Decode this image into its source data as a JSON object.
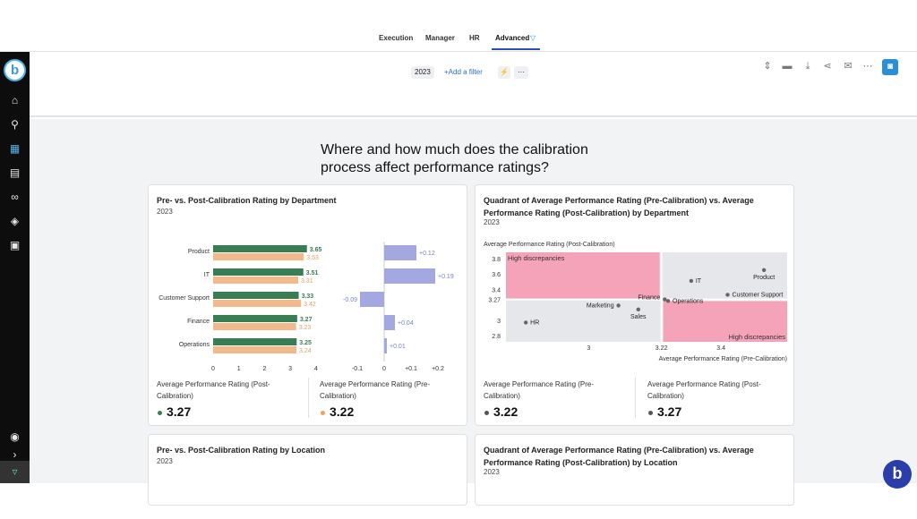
{
  "nav": {
    "tabs": [
      {
        "label": "Execution"
      },
      {
        "label": "Manager"
      },
      {
        "label": "HR"
      },
      {
        "label": "Advanced"
      }
    ]
  },
  "toolbar": {
    "year_chip": "2023",
    "add_filter": "+Add a filter",
    "bolt": "⚡",
    "more": "···"
  },
  "page": {
    "title": "Where and how much does the calibration process affect performance ratings?"
  },
  "cards": {
    "dept_bar": {
      "title": "Pre- vs. Post-Calibration Rating by Department",
      "year": "2023",
      "kpi1_label": "Average Performance Rating (Post-Calibration)",
      "kpi1_value": "3.27",
      "kpi2_label": "Average Performance Rating (Pre-Calibration)",
      "kpi2_value": "3.22"
    },
    "dept_quad": {
      "title": "Quadrant of Average Performance Rating (Pre-Calibration) vs. Average Performance Rating (Post-Calibration) by Department",
      "year": "2023",
      "kpi1_label": "Average Performance Rating (Pre-Calibration)",
      "kpi1_value": "3.22",
      "kpi2_label": "Average Performance Rating (Post-Calibration)",
      "kpi2_value": "3.27"
    },
    "loc_bar": {
      "title": "Pre- vs. Post-Calibration Rating by Location",
      "year": "2023"
    },
    "loc_quad": {
      "title": "Quadrant of Average Performance Rating (Pre-Calibration) vs. Average Performance Rating (Post-Calibration) by Location",
      "year": "2023"
    }
  },
  "colors": {
    "post": "#3a7d55",
    "pre": "#f2b98a",
    "diff": "#a3a8e0",
    "quad_highlight": "#f4a3b8",
    "quad_bg": "#e6e7ea"
  },
  "chart_data": [
    {
      "type": "bar",
      "title": "Pre- vs. Post-Calibration Rating by Department",
      "categories": [
        "Product",
        "IT",
        "Customer Support",
        "Finance",
        "Operations"
      ],
      "series": [
        {
          "name": "Post-Calibration",
          "values": [
            3.65,
            3.51,
            3.33,
            3.27,
            3.25
          ]
        },
        {
          "name": "Pre-Calibration",
          "values": [
            3.53,
            3.31,
            3.42,
            3.23,
            3.24
          ]
        }
      ],
      "xlim": [
        0,
        4
      ],
      "xticks": [
        "0",
        "1",
        "2",
        "3",
        "4"
      ]
    },
    {
      "type": "bar",
      "categories": [
        "Product",
        "IT",
        "Customer Support",
        "Finance",
        "Operations"
      ],
      "values": [
        0.12,
        0.19,
        -0.09,
        0.04,
        0.01
      ],
      "labels": [
        "+0.12",
        "+0.19",
        "-0.09",
        "+0.04",
        "+0.01"
      ],
      "xlim": [
        -0.1,
        0.2
      ],
      "xticks": [
        "-0.1",
        "0",
        "+0.1",
        "+0.2"
      ]
    },
    {
      "type": "scatter",
      "title": "Quadrant of Average Performance Rating (Pre-Calibration) vs. Average Performance Rating (Post-Calibration) by Department",
      "xlabel": "Average Performance Rating (Pre-Calibration)",
      "ylabel": "Average Performance Rating (Post-Calibration)",
      "xlim": [
        2.75,
        3.6
      ],
      "ylim": [
        2.72,
        3.88
      ],
      "xticks": [
        "3",
        "3.22",
        "3.4"
      ],
      "yticks": [
        "3.8",
        "3.6",
        "3.4",
        "3.27",
        "3",
        "2.8"
      ],
      "reference_x": 3.22,
      "reference_y": 3.27,
      "quadrant_labels": [
        "High discrepancies",
        "High discrepancies"
      ],
      "points": [
        {
          "label": "Product",
          "x": 3.53,
          "y": 3.65
        },
        {
          "label": "IT",
          "x": 3.31,
          "y": 3.51
        },
        {
          "label": "Customer Support",
          "x": 3.42,
          "y": 3.33
        },
        {
          "label": "Finance",
          "x": 3.23,
          "y": 3.27
        },
        {
          "label": "Operations",
          "x": 3.24,
          "y": 3.25
        },
        {
          "label": "Marketing",
          "x": 3.09,
          "y": 3.19
        },
        {
          "label": "Sales",
          "x": 3.15,
          "y": 3.14
        },
        {
          "label": "HR",
          "x": 2.81,
          "y": 2.97
        }
      ]
    }
  ]
}
